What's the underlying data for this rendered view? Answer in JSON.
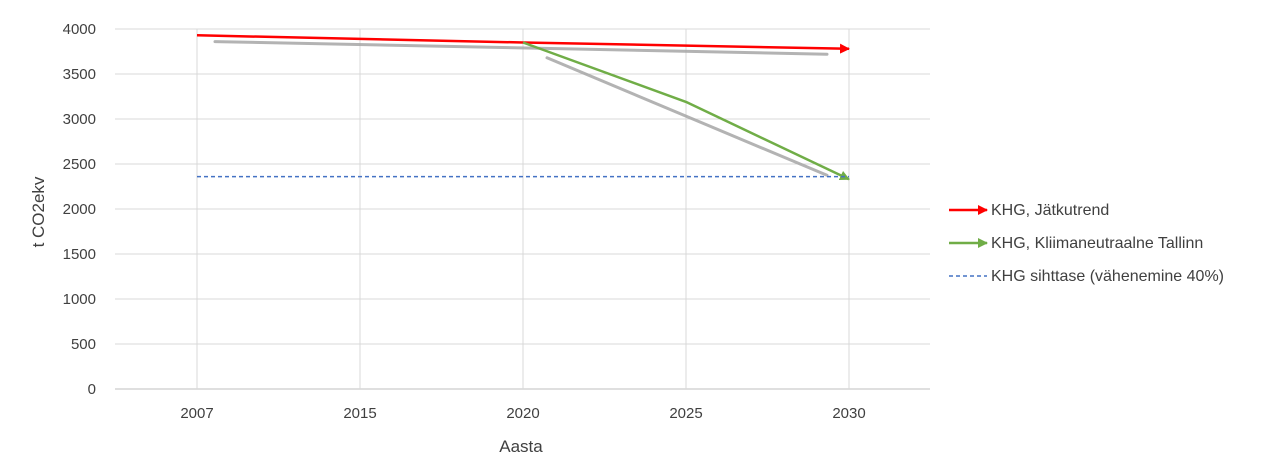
{
  "chart_data": {
    "type": "line",
    "title": "",
    "xlabel": "Aasta",
    "ylabel": "t CO2ekv",
    "categories": [
      "2007",
      "2015",
      "2020",
      "2025",
      "2030"
    ],
    "ylim": [
      0,
      4000
    ],
    "yticks": [
      "0",
      "500",
      "1000",
      "1500",
      "2000",
      "2500",
      "3000",
      "3500",
      "4000"
    ],
    "grid": "vertical and horizontal",
    "legend_position": "right",
    "series": [
      {
        "name": "KHG, Jätkutrend",
        "color": "#ff0000",
        "style": "solid-arrow",
        "points": [
          [
            "2007",
            3930
          ],
          [
            "2020",
            3850
          ],
          [
            "2030",
            3780
          ]
        ]
      },
      {
        "name": "KHG, Kliimaneutraalne Tallinn",
        "color": "#70ad47",
        "style": "solid-arrow",
        "points": [
          [
            "2020",
            3850
          ],
          [
            "2025",
            3190
          ],
          [
            "2030",
            2330
          ]
        ]
      },
      {
        "name": "KHG sihttase (vähenemine 40%)",
        "color": "#4472c4",
        "style": "dashed",
        "points": [
          [
            "2007",
            2360
          ],
          [
            "2030",
            2360
          ]
        ]
      }
    ],
    "annotations": [
      {
        "type": "trend-shadow",
        "color": "#a6a6a6",
        "points": [
          [
            "2007",
            3860
          ],
          [
            "2030",
            3720
          ]
        ]
      },
      {
        "type": "trend-shadow",
        "color": "#a6a6a6",
        "points": [
          [
            "2020",
            3680
          ],
          [
            "2030",
            2330
          ]
        ]
      }
    ]
  }
}
